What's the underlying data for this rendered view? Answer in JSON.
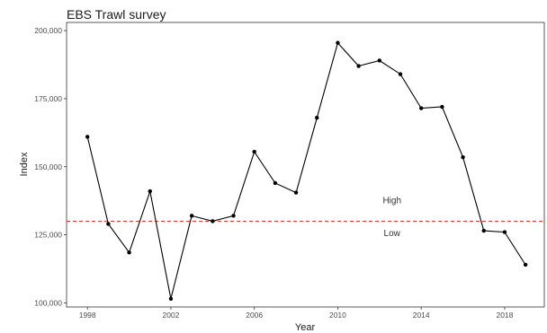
{
  "chart_data": {
    "type": "line",
    "title": "EBS Trawl survey",
    "xlabel": "Year",
    "ylabel": "Index",
    "xlim": [
      1997.0,
      2019.9
    ],
    "ylim": [
      98500,
      203000
    ],
    "x_ticks": [
      1998,
      2002,
      2006,
      2010,
      2014,
      2018
    ],
    "y_ticks": [
      100000,
      125000,
      150000,
      175000,
      200000
    ],
    "y_tick_labels": [
      "100,000",
      "125,000",
      "150,000",
      "175,000",
      "200,000"
    ],
    "grid": false,
    "legend": "none",
    "series": [
      {
        "x": [
          1998,
          1999,
          2000,
          2001,
          2002,
          2003,
          2004,
          2005,
          2006,
          2007,
          2008,
          2009,
          2010,
          2011,
          2012,
          2013,
          2014,
          2015,
          2016,
          2017,
          2018,
          2019
        ],
        "values": [
          161000,
          129000,
          118500,
          141000,
          101500,
          132000,
          130000,
          132000,
          155500,
          144000,
          140500,
          168000,
          195500,
          187000,
          189000,
          184000,
          171500,
          172000,
          153500,
          126500,
          126000,
          114000
        ],
        "color": "#000000"
      }
    ],
    "reference_line": {
      "y": 130000,
      "color": "#e8322a",
      "style": "dashed"
    },
    "annotations": [
      {
        "text": "High",
        "x": 2012.6,
        "y": 136500
      },
      {
        "text": "Low",
        "x": 2012.6,
        "y": 124500
      }
    ]
  }
}
